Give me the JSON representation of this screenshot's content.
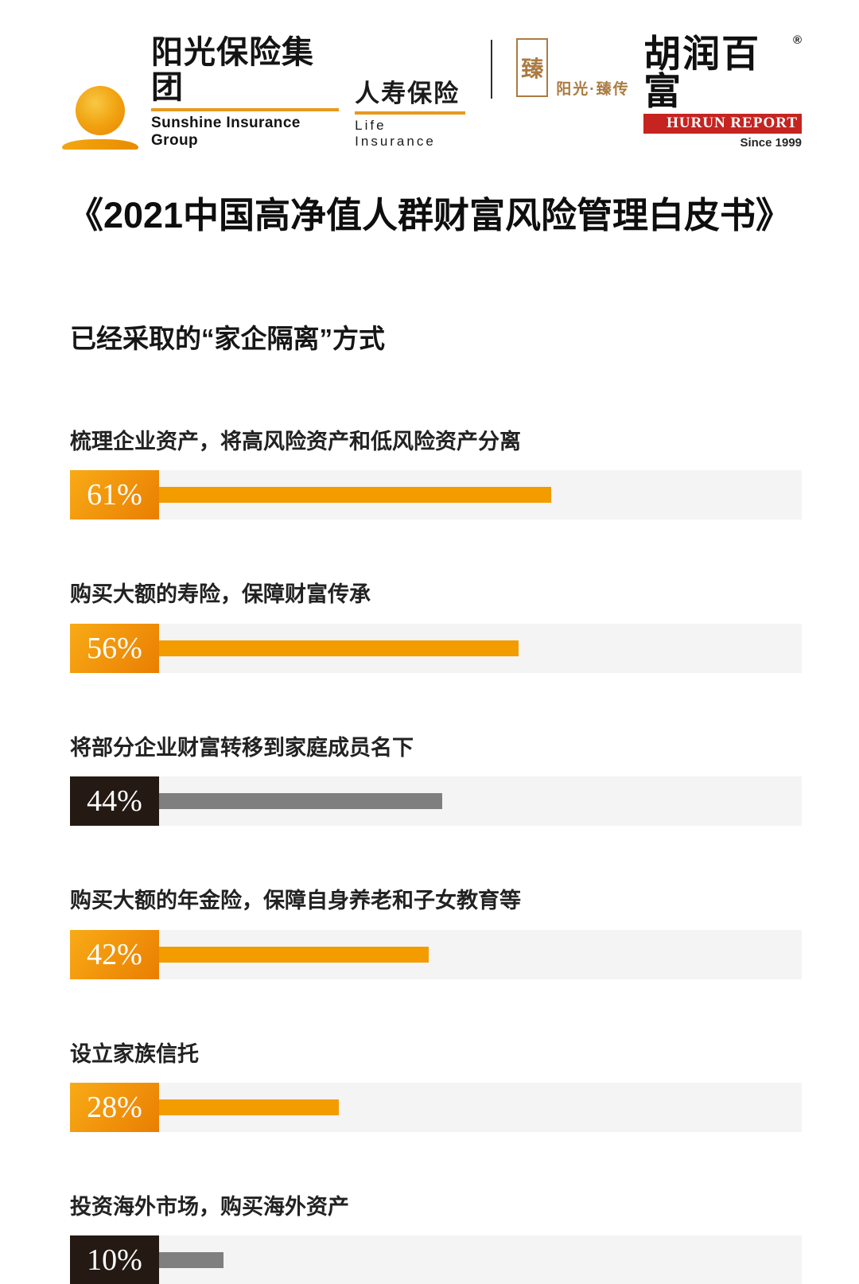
{
  "header": {
    "sunshine": {
      "name_cn": "阳光保险集团",
      "name_en": "Sunshine Insurance Group",
      "division_cn": "人寿保险",
      "division_en": "Life Insurance"
    },
    "zhenchuan": {
      "seal_char": "臻",
      "label": "阳光·臻传"
    },
    "hurun": {
      "name_cn": "胡润百富",
      "registered": "®",
      "name_en": "HURUN REPORT",
      "since": "Since 1999"
    }
  },
  "title": "《2021中国高净值人群财富风险管理白皮书》",
  "section_heading": "已经采取的“家企隔离”方式",
  "chart_data": {
    "type": "bar",
    "orientation": "horizontal",
    "title": "已经采取的“家企隔离”方式",
    "unit": "%",
    "xlim": [
      0,
      100
    ],
    "grid": false,
    "legend": false,
    "categories": [
      "梳理企业资产，将高风险资产和低风险资产分离",
      "购买大额的寿险，保障财富传承",
      "将部分企业财富转移到家庭成员名下",
      "购买大额的年金险，保障自身养老和子女教育等",
      "设立家族信托",
      "投资海外市场，购买海外资产"
    ],
    "values": [
      61,
      56,
      44,
      42,
      28,
      10
    ],
    "value_labels": [
      "61%",
      "56%",
      "44%",
      "42%",
      "28%",
      "10%"
    ],
    "themes": [
      "orange",
      "orange",
      "dark",
      "orange",
      "orange",
      "dark"
    ],
    "colors": {
      "orange_light": "#f8ab16",
      "orange_deep": "#ea7e02",
      "orange_bar": "#f39c00",
      "dark_box": "#241a13",
      "gray_bar": "#7f7f7f",
      "track": "#f4f4f4",
      "hurun_red": "#c52421",
      "brand_orange": "#e8991d",
      "seal_bronze": "#ab7b42"
    }
  }
}
